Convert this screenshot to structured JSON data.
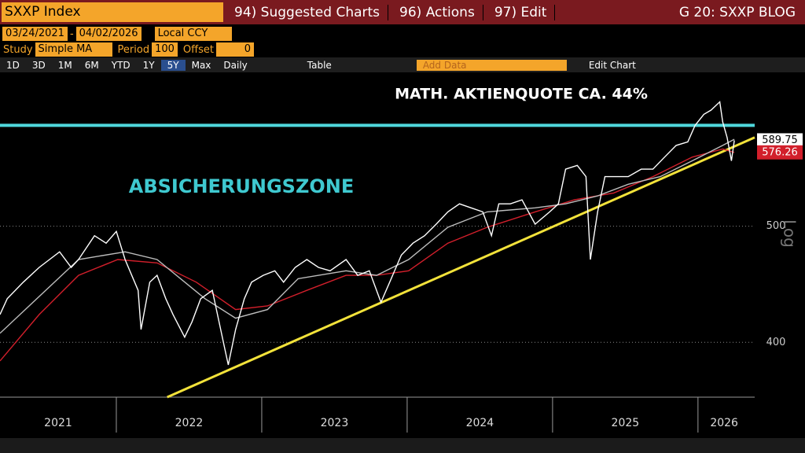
{
  "toolbar": {
    "ticker": "SXXP Index",
    "menu": [
      "94) Suggested Charts",
      "96) Actions",
      "97) Edit"
    ],
    "blog": "G 20: SXXP BLOG"
  },
  "controls": {
    "start": "03/24/2021",
    "separator": "-",
    "end": "04/02/2026",
    "currency": "Local CCY",
    "study_label": "Study",
    "study": "Simple MA",
    "period_label": "Period",
    "period": 100,
    "offset_label": "Offset",
    "offset": 0
  },
  "ranges": [
    "1D",
    "3D",
    "1M",
    "6M",
    "YTD",
    "1Y",
    "5Y",
    "Max"
  ],
  "frequency": "Daily",
  "table": "Table",
  "add_data": "Add Data",
  "edit_chart": "Edit Chart",
  "chart_data": {
    "type": "line",
    "annotations": [
      "MATH. AKTIENQUOTE CA. 44%",
      "ABSICHERUNGSZONE"
    ],
    "y_axis_label": "Log",
    "log_scale": true,
    "grid": true,
    "xlim": [
      2021.2,
      2026.39
    ],
    "ylim": [
      360,
      664
    ],
    "xticks": [
      {
        "value": 2021.6,
        "label": "2021"
      },
      {
        "value": 2022.5,
        "label": "2022"
      },
      {
        "value": 2023.5,
        "label": "2023"
      },
      {
        "value": 2024.5,
        "label": "2024"
      },
      {
        "value": 2025.5,
        "label": "2025"
      },
      {
        "value": 2026.18,
        "label": "2026"
      }
    ],
    "yticks": [
      400,
      500
    ],
    "reference_line": 607,
    "reference_color": "#4fd8dc",
    "series": [
      {
        "color": "#ffffff",
        "x": [
          2021.2,
          2021.25,
          2021.36,
          2021.47,
          2021.61,
          2021.69,
          2021.74,
          2021.85,
          2021.93,
          2022.0,
          2022.06,
          2022.15,
          2022.17,
          2022.23,
          2022.28,
          2022.34,
          2022.39,
          2022.47,
          2022.52,
          2022.58,
          2022.66,
          2022.74,
          2022.77,
          2022.82,
          2022.88,
          2022.93,
          2023.01,
          2023.09,
          2023.15,
          2023.23,
          2023.31,
          2023.39,
          2023.47,
          2023.58,
          2023.66,
          2023.74,
          2023.82,
          2023.88,
          2023.96,
          2024.04,
          2024.12,
          2024.2,
          2024.28,
          2024.36,
          2024.44,
          2024.52,
          2024.58,
          2024.63,
          2024.71,
          2024.79,
          2024.88,
          2024.98,
          2025.04,
          2025.09,
          2025.17,
          2025.23,
          2025.26,
          2025.31,
          2025.36,
          2025.44,
          2025.52,
          2025.61,
          2025.69,
          2025.77,
          2025.85,
          2025.93,
          2025.98,
          2026.04,
          2026.09,
          2026.15,
          2026.17,
          2026.2,
          2026.23,
          2026.25
        ],
        "values": [
          422,
          435,
          449,
          462,
          476,
          462,
          469,
          491,
          484,
          495,
          469,
          442,
          410,
          449,
          455,
          435,
          422,
          404,
          416,
          435,
          442,
          398,
          383,
          410,
          435,
          449,
          455,
          459,
          449,
          462,
          469,
          462,
          459,
          469,
          455,
          459,
          432,
          449,
          473,
          484,
          491,
          502,
          514,
          522,
          518,
          514,
          491,
          522,
          522,
          526,
          502,
          514,
          522,
          558,
          562,
          550,
          469,
          514,
          550,
          550,
          550,
          558,
          558,
          571,
          584,
          588,
          607,
          620,
          625,
          635,
          611,
          593,
          567,
          589.75
        ],
        "label_last": true,
        "label_bg": "#ffffff",
        "label_fg": "#000000"
      },
      {
        "color": "#bdbdbd",
        "x": [
          2021.2,
          2021.74,
          2022.06,
          2022.28,
          2022.61,
          2022.82,
          2023.04,
          2023.25,
          2023.58,
          2023.79,
          2024.01,
          2024.28,
          2024.55,
          2024.88,
          2025.09,
          2025.31,
          2025.52,
          2025.74,
          2025.96,
          2026.17,
          2026.25
        ],
        "values": [
          407,
          469,
          476,
          469,
          435,
          419,
          426,
          452,
          459,
          455,
          469,
          499,
          514,
          518,
          522,
          530,
          542,
          550,
          567,
          584,
          591
        ]
      },
      {
        "color": "#d21f2b",
        "x": [
          2021.2,
          2021.47,
          2021.74,
          2022.01,
          2022.28,
          2022.55,
          2022.82,
          2023.04,
          2023.31,
          2023.58,
          2023.79,
          2024.01,
          2024.28,
          2024.55,
          2024.88,
          2025.15,
          2025.42,
          2025.69,
          2025.96,
          2026.17,
          2026.25
        ],
        "values": [
          386,
          422,
          455,
          469,
          466,
          449,
          426,
          429,
          442,
          455,
          455,
          459,
          484,
          499,
          514,
          526,
          533,
          550,
          571,
          580,
          576.26
        ],
        "label_last": true,
        "label_bg": "#d21f2b",
        "label_fg": "#ffffff"
      },
      {
        "color": "#f2e23a",
        "x": [
          2022.35,
          2026.39
        ],
        "values": [
          360,
          593
        ]
      }
    ]
  }
}
